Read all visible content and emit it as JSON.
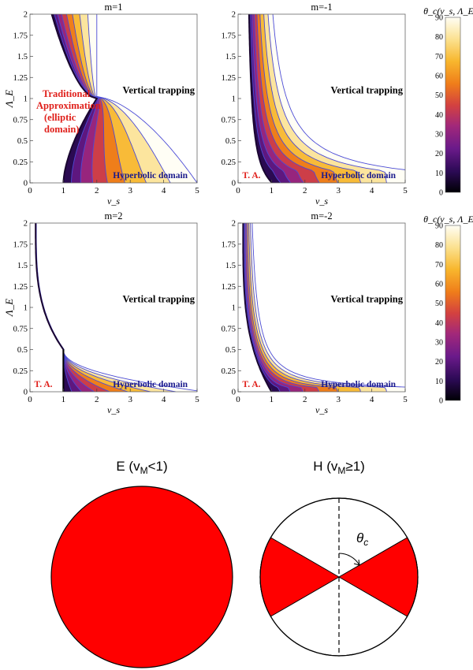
{
  "chart_data": [
    {
      "type": "contour-map",
      "title": "m=1",
      "xlabel": "ν_s",
      "ylabel": "Λ_E",
      "xlim": [
        0,
        5
      ],
      "ylim": [
        0,
        2
      ],
      "xticks": [
        "0",
        "1",
        "2",
        "3",
        "4",
        "5"
      ],
      "yticks": [
        "0",
        "0.25",
        "0.5",
        "0.75",
        "1",
        "1.25",
        "1.5",
        "1.75",
        "2"
      ],
      "annotations": {
        "vertical": "Vertical trapping",
        "hyperbolic": "Hyperbolic domain",
        "elliptic_lines": [
          "Traditional",
          "Approximation",
          "(elliptic",
          "domain)"
        ]
      },
      "boundary": {
        "critical_point": [
          2,
          1
        ],
        "left_boundary_vs_at_lambda_0": 1,
        "upper_boundary_vs_at_lambda_0": 5
      }
    },
    {
      "type": "contour-map",
      "title": "m=-1",
      "xlabel": "ν_s",
      "ylabel": "",
      "xlim": [
        0,
        5
      ],
      "ylim": [
        0,
        2
      ],
      "xticks": [
        "0",
        "1",
        "2",
        "3",
        "4",
        "5"
      ],
      "yticks": [
        "0",
        "0.25",
        "0.5",
        "0.75",
        "1",
        "1.25",
        "1.5",
        "1.75",
        "2"
      ],
      "annotations": {
        "vertical": "Vertical trapping",
        "hyperbolic": "Hyperbolic domain",
        "ta": "T. A."
      }
    },
    {
      "type": "contour-map",
      "title": "m=2",
      "xlabel": "ν_s",
      "ylabel": "Λ_E",
      "xlim": [
        0,
        5
      ],
      "ylim": [
        0,
        2
      ],
      "xticks": [
        "0",
        "1",
        "2",
        "3",
        "4",
        "5"
      ],
      "yticks": [
        "0",
        "0.25",
        "0.5",
        "0.75",
        "1",
        "1.25",
        "1.5",
        "1.75",
        "2"
      ],
      "annotations": {
        "vertical": "Vertical trapping",
        "hyperbolic": "Hyperbolic domain",
        "ta": "T. A."
      },
      "boundary": {
        "critical_point": [
          1,
          0.5
        ]
      }
    },
    {
      "type": "contour-map",
      "title": "m=-2",
      "xlabel": "ν_s",
      "ylabel": "",
      "xlim": [
        0,
        5
      ],
      "ylim": [
        0,
        2
      ],
      "xticks": [
        "0",
        "1",
        "2",
        "3",
        "4",
        "5"
      ],
      "yticks": [
        "0",
        "0.25",
        "0.5",
        "0.75",
        "1",
        "1.25",
        "1.5",
        "1.75",
        "2"
      ],
      "annotations": {
        "vertical": "Vertical trapping",
        "hyperbolic": "Hyperbolic domain",
        "ta": "T. A."
      }
    }
  ],
  "colorbars": [
    {
      "label": "θ_c(ν_s, Λ_E)",
      "range": [
        0,
        90
      ],
      "ticks": [
        "0",
        "10",
        "20",
        "30",
        "40",
        "50",
        "60",
        "70",
        "80",
        "90"
      ]
    },
    {
      "label": "θ_c(ν_s, Λ_E)",
      "range": [
        0,
        90
      ],
      "ticks": [
        "0",
        "10",
        "20",
        "30",
        "40",
        "50",
        "60",
        "70",
        "80",
        "90"
      ]
    }
  ],
  "diagrams": {
    "left_title": "E (v",
    "left_sub": "M",
    "left_tail": "<1)",
    "right_title": "H (v",
    "right_sub": "M",
    "right_tail": "≥1)",
    "theta_label": "θ",
    "theta_sub": "c",
    "fill_color": "#ff0000",
    "sector_half_angle_deg": 30,
    "theta_c_deg": 60
  },
  "colors": {
    "contour_line": "#4b4bd6",
    "annotation_blue": "#1a1a8c",
    "annotation_red": "#e0201b"
  }
}
